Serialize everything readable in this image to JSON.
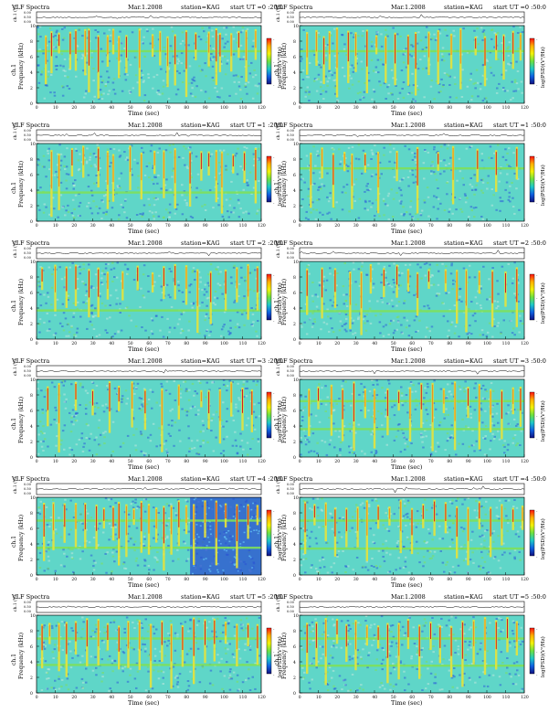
{
  "page": {
    "background": "#ffffff"
  },
  "header_template": {
    "title": "VLF Spectra",
    "date": "Mar.1.2008",
    "station": "station=KAG",
    "start_prefix": "start  UT ="
  },
  "axes_text": {
    "ch_label": "ch.1 (V)",
    "ch_ticks": [
      "0.00",
      "0.50",
      "0.00"
    ],
    "freq_ylabel_top": "ch.1",
    "freq_ylabel": "Frequency  (kHz)",
    "freq_ticks": [
      "0",
      "2",
      "4",
      "6",
      "8",
      "10"
    ],
    "xlabel": "Time  (sec)",
    "x_ticks": [
      "0",
      "10",
      "20",
      "30",
      "40",
      "50",
      "60",
      "70",
      "80",
      "90",
      "100",
      "110",
      "120"
    ],
    "colorbar_label": "log(PSD)(V²/Hz)",
    "colorbar_ticks": [
      "-",
      "-",
      "-"
    ]
  },
  "colors": {
    "spec_bg": "#5fd6c8",
    "spec_dark": "#2b5fd9",
    "spec_light": "#bfe8dc",
    "burst_yellow": "#e8e23a",
    "burst_orange": "#f08a1c",
    "burst_red": "#d81c1c",
    "band_green": "#7ee05a",
    "colorbar": [
      "#ff1010",
      "#ffb000",
      "#f2f20a",
      "#6ee040",
      "#1ec8c8",
      "#1060e0",
      "#101080"
    ]
  },
  "chart_data": [
    {
      "type": "heatmap",
      "start_ut": "0 :20:0",
      "axis": {
        "x_range": [
          0,
          120
        ],
        "y_range": [
          0,
          10
        ],
        "x_unit": "sec",
        "y_unit": "kHz"
      },
      "bursts": [
        5,
        8,
        12,
        18,
        21,
        26,
        28,
        33,
        38,
        41,
        44,
        48,
        55,
        62,
        66,
        70,
        74,
        80,
        85,
        92,
        96,
        98,
        104,
        108,
        112,
        117
      ],
      "bands_khz": [
        6.7
      ],
      "dark_region": []
    },
    {
      "type": "heatmap",
      "start_ut": "0 :50:0",
      "axis": {
        "x_range": [
          0,
          120
        ],
        "y_range": [
          0,
          10
        ],
        "x_unit": "sec",
        "y_unit": "kHz"
      },
      "bursts": [
        4,
        9,
        13,
        16,
        20,
        26,
        30,
        36,
        41,
        46,
        51,
        58,
        62,
        69,
        74,
        81,
        86,
        94,
        99,
        105,
        109,
        114,
        118
      ],
      "bands_khz": [
        6.7
      ],
      "dark_region": []
    },
    {
      "type": "heatmap",
      "start_ut": "1 :20:0",
      "axis": {
        "x_range": [
          0,
          120
        ],
        "y_range": [
          0,
          10
        ],
        "x_unit": "sec",
        "y_unit": "kHz"
      },
      "bursts": [
        8,
        12,
        19,
        25,
        33,
        38,
        41,
        50,
        56,
        63,
        68,
        74,
        82,
        88,
        92,
        96,
        99,
        105,
        111,
        117
      ],
      "bands_khz": [
        3.7
      ],
      "dark_region": []
    },
    {
      "type": "heatmap",
      "start_ut": "1 :50:0",
      "axis": {
        "x_range": [
          0,
          120
        ],
        "y_range": [
          0,
          10
        ],
        "x_unit": "sec",
        "y_unit": "kHz"
      },
      "bursts": [
        6,
        12,
        18,
        24,
        28,
        35,
        42,
        52,
        63,
        74,
        82,
        95,
        105,
        116
      ],
      "bands_khz": [
        6.8
      ],
      "dark_region": []
    },
    {
      "type": "heatmap",
      "start_ut": "2 :20:0",
      "axis": {
        "x_range": [
          0,
          120
        ],
        "y_range": [
          0,
          10
        ],
        "x_unit": "sec",
        "y_unit": "kHz"
      },
      "bursts": [
        3,
        10,
        16,
        21,
        28,
        33,
        38,
        46,
        54,
        62,
        68,
        74,
        80,
        86,
        93,
        101,
        107,
        113,
        118
      ],
      "bands_khz": [
        3.7
      ],
      "dark_region": []
    },
    {
      "type": "heatmap",
      "start_ut": "2 :50:0",
      "axis": {
        "x_range": [
          0,
          120
        ],
        "y_range": [
          0,
          10
        ],
        "x_unit": "sec",
        "y_unit": "kHz"
      },
      "bursts": [
        4,
        12,
        19,
        27,
        33,
        38,
        45,
        52,
        58,
        63,
        69,
        78,
        84,
        89,
        96,
        103,
        110,
        116
      ],
      "bands_khz": [
        3.6
      ],
      "dark_region": []
    },
    {
      "type": "heatmap",
      "start_ut": "3 :20:0",
      "axis": {
        "x_range": [
          0,
          120
        ],
        "y_range": [
          0,
          10
        ],
        "x_unit": "sec",
        "y_unit": "kHz"
      },
      "bursts": [
        6,
        12,
        21,
        30,
        39,
        44,
        51,
        58,
        67,
        76,
        88,
        92,
        98,
        104,
        110,
        115
      ],
      "bands_khz": [],
      "dark_region": []
    },
    {
      "type": "heatmap",
      "start_ut": "3 :50:0",
      "axis": {
        "x_range": [
          0,
          120
        ],
        "y_range": [
          0,
          10
        ],
        "x_unit": "sec",
        "y_unit": "kHz"
      },
      "bursts": [
        5,
        10,
        17,
        23,
        29,
        35,
        40,
        47,
        53,
        59,
        65,
        71,
        77,
        83,
        90,
        96,
        102,
        108,
        114,
        118
      ],
      "bands_khz": [
        7.2,
        3.6
      ],
      "dark_region": []
    },
    {
      "type": "heatmap",
      "start_ut": "4 :20:0",
      "axis": {
        "x_range": [
          0,
          120
        ],
        "y_range": [
          0,
          10
        ],
        "x_unit": "sec",
        "y_unit": "kHz"
      },
      "bursts": [
        4,
        9,
        15,
        21,
        26,
        32,
        36,
        41,
        44,
        48,
        52,
        56,
        60,
        64,
        68,
        72,
        76,
        80,
        84,
        90,
        96,
        101,
        107,
        113,
        118
      ],
      "bands_khz": [
        7.0,
        3.5
      ],
      "dark_region": [
        82,
        120
      ]
    },
    {
      "type": "heatmap",
      "start_ut": "4 :50:0",
      "axis": {
        "x_range": [
          0,
          120
        ],
        "y_range": [
          0,
          10
        ],
        "x_unit": "sec",
        "y_unit": "kHz"
      },
      "bursts": [
        3,
        8,
        14,
        19,
        25,
        31,
        36,
        42,
        48,
        54,
        60,
        66,
        72,
        78,
        84,
        90,
        96,
        102,
        108,
        114,
        119
      ],
      "bands_khz": [
        7.0,
        3.4
      ],
      "dark_region": []
    },
    {
      "type": "heatmap",
      "start_ut": "5 :20:0",
      "axis": {
        "x_range": [
          0,
          120
        ],
        "y_range": [
          0,
          10
        ],
        "x_unit": "sec",
        "y_unit": "kHz"
      },
      "bursts": [
        3,
        7,
        12,
        16,
        21,
        27,
        33,
        38,
        44,
        49,
        55,
        61,
        67,
        72,
        78,
        84,
        90,
        95,
        101,
        107,
        113,
        118
      ],
      "bands_khz": [
        7.0,
        3.6
      ],
      "dark_region": []
    },
    {
      "type": "heatmap",
      "start_ut": "5 :50:0",
      "axis": {
        "x_range": [
          0,
          120
        ],
        "y_range": [
          0,
          10
        ],
        "x_unit": "sec",
        "y_unit": "kHz"
      },
      "bursts": [
        4,
        9,
        14,
        20,
        25,
        30,
        36,
        42,
        47,
        53,
        58,
        64,
        70,
        75,
        81,
        87,
        93,
        99,
        105,
        111,
        116
      ],
      "bands_khz": [
        7.0,
        3.5
      ],
      "dark_region": []
    }
  ]
}
